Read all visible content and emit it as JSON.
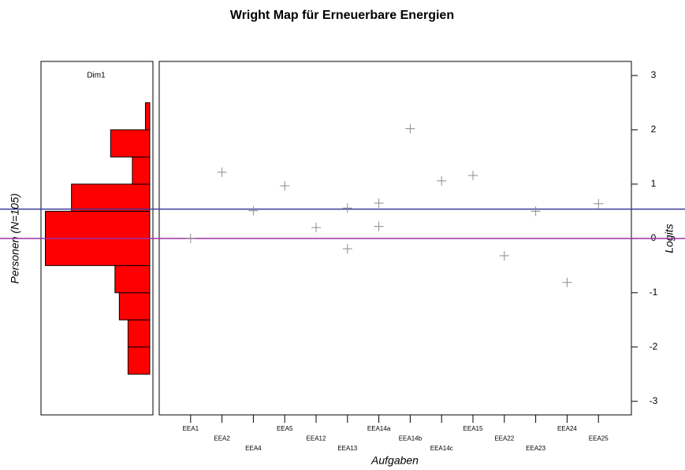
{
  "chart_data": [
    {
      "type": "histogram",
      "orientation": "horizontal",
      "title": "Dim1",
      "ylabel": "Personen (N=105)",
      "bins": [
        -2.5,
        -2,
        -1.5,
        -1,
        -0.5,
        0,
        0.5,
        1,
        1.5,
        2,
        2.5
      ],
      "values": [
        5,
        5,
        7,
        8,
        24,
        24,
        18,
        4,
        9,
        1
      ],
      "xlim": [
        0,
        25
      ],
      "color": "#ff0000"
    },
    {
      "type": "scatter",
      "title": "Wright Map für Erneuerbare Energien",
      "xlabel": "Aufgaben",
      "ylabel": "Logits",
      "x": [
        1,
        2,
        3,
        4,
        5,
        6,
        6,
        7,
        7,
        8,
        9,
        10,
        11,
        12,
        13,
        14
      ],
      "y": [
        0.0,
        1.22,
        0.51,
        0.97,
        0.2,
        0.56,
        -0.19,
        0.65,
        0.22,
        2.02,
        1.06,
        1.16,
        -0.32,
        0.5,
        -0.81,
        0.64
      ],
      "xlim": [
        0,
        15.05
      ],
      "ylim": [
        -3.25,
        3.26
      ],
      "xticks": [
        {
          "value": 1,
          "label": "EEA1"
        },
        {
          "value": 2,
          "label": "EEA2"
        },
        {
          "value": 3,
          "label": "EEA4"
        },
        {
          "value": 4,
          "label": "EEA5"
        },
        {
          "value": 5,
          "label": "EEA12"
        },
        {
          "value": 6,
          "label": "EEA13"
        },
        {
          "value": 7,
          "label": "EEA14a"
        },
        {
          "value": 8,
          "label": "EEA14b"
        },
        {
          "value": 9,
          "label": "EEA14c"
        },
        {
          "value": 10,
          "label": "EEA15"
        },
        {
          "value": 11,
          "label": "EEA22"
        },
        {
          "value": 12,
          "label": "EEA23"
        },
        {
          "value": 13,
          "label": "EEA24"
        },
        {
          "value": 14,
          "label": "EEA25"
        }
      ],
      "yticks": [
        -3,
        -2,
        -1,
        0,
        1,
        2,
        3
      ],
      "color": "#8c8c8c",
      "hlines": [
        {
          "value": 0.54,
          "color": "#3a3a9a"
        },
        {
          "value": 0,
          "color": "#a030a8"
        }
      ]
    }
  ]
}
